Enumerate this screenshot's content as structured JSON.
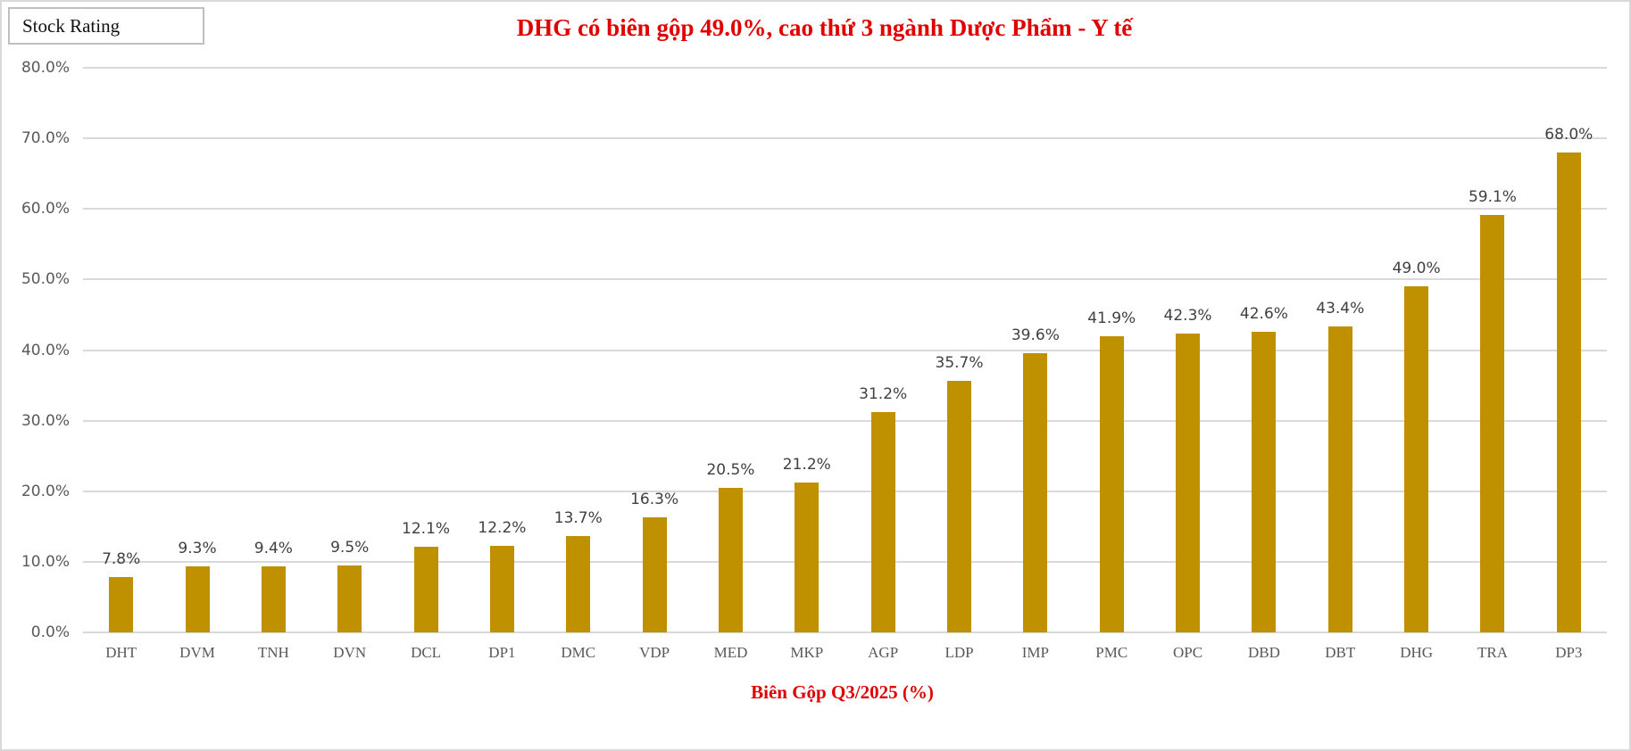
{
  "badge": {
    "label": "Stock Rating"
  },
  "colors": {
    "bar": "#BF9000",
    "title": "#E00000",
    "axis_text": "#595959",
    "grid": "#D9D9D9"
  },
  "chart_data": {
    "type": "bar",
    "title": "DHG có biên gộp 49.0%, cao thứ 3 ngành Dược Phẩm -  Y tế",
    "xlabel": "Biên Gộp Q3/2025 (%)",
    "ylabel": "",
    "ylim": [
      0,
      80
    ],
    "grid": true,
    "legend": "none",
    "yticks": [
      "0.0%",
      "10.0%",
      "20.0%",
      "30.0%",
      "40.0%",
      "50.0%",
      "60.0%",
      "70.0%",
      "80.0%"
    ],
    "categories": [
      "DHT",
      "DVM",
      "TNH",
      "DVN",
      "DCL",
      "DP1",
      "DMC",
      "VDP",
      "MED",
      "MKP",
      "AGP",
      "LDP",
      "IMP",
      "PMC",
      "OPC",
      "DBD",
      "DBT",
      "DHG",
      "TRA",
      "DP3"
    ],
    "values": [
      7.8,
      9.3,
      9.4,
      9.5,
      12.1,
      12.2,
      13.7,
      16.3,
      20.5,
      21.2,
      31.2,
      35.7,
      39.6,
      41.9,
      42.3,
      42.6,
      43.4,
      49.0,
      59.1,
      68.0
    ],
    "data_labels": [
      "7.8%",
      "9.3%",
      "9.4%",
      "9.5%",
      "12.1%",
      "12.2%",
      "13.7%",
      "16.3%",
      "20.5%",
      "21.2%",
      "31.2%",
      "35.7%",
      "39.6%",
      "41.9%",
      "42.3%",
      "42.6%",
      "43.4%",
      "49.0%",
      "59.1%",
      "68.0%"
    ]
  }
}
